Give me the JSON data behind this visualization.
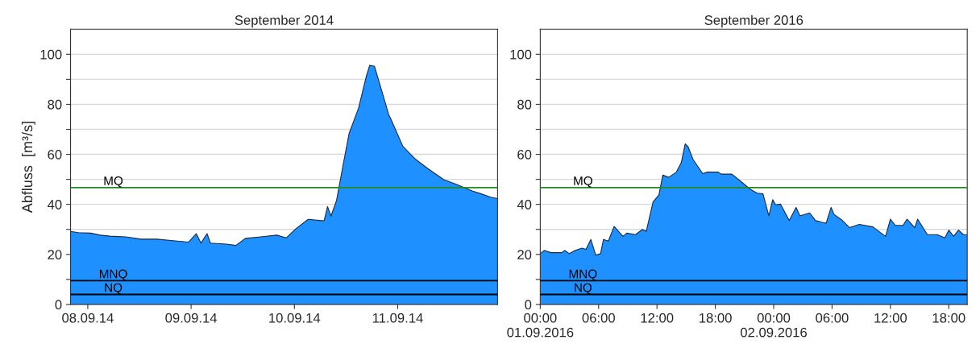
{
  "chart_data": [
    {
      "type": "area",
      "title": "September 2014",
      "ylabel": "Abfluss  [m³/s]",
      "xlim": [
        "2014-09-07T20:00",
        "2014-09-11T23:12"
      ],
      "xticks": [
        {
          "value": "2014-09-08",
          "label": "08.09.14"
        },
        {
          "value": "2014-09-09",
          "label": "09.09.14"
        },
        {
          "value": "2014-09-10",
          "label": "10.09.14"
        },
        {
          "value": "2014-09-11",
          "label": "11.09.14"
        }
      ],
      "ylim": [
        0,
        110
      ],
      "yticks": [
        0,
        {
          "value": 10,
          "label": null
        },
        20,
        {
          "value": 30,
          "label": null
        },
        40,
        {
          "value": 50,
          "label": null
        },
        60,
        {
          "value": 70,
          "label": null
        },
        80,
        {
          "value": 90,
          "label": null
        },
        100
      ],
      "grid": "y",
      "x": [
        "2014-09-07T20:00",
        "2014-09-07T21:48",
        "2014-09-08T00:42",
        "2014-09-08T02:54",
        "2014-09-08T05:06",
        "2014-09-08T08:48",
        "2014-09-08T12:24",
        "2014-09-08T16:06",
        "2014-09-08T19:48",
        "2014-09-08T23:24",
        "2014-09-09T01:12",
        "2014-09-09T02:18",
        "2014-09-09T03:42",
        "2014-09-09T04:30",
        "2014-09-09T08:12",
        "2014-09-09T10:24",
        "2014-09-09T12:36",
        "2014-09-09T16:12",
        "2014-09-09T19:54",
        "2014-09-09T22:06",
        "2014-09-10T00:18",
        "2014-09-10T03:12",
        "2014-09-10T06:54",
        "2014-09-10T07:42",
        "2014-09-10T08:30",
        "2014-09-10T09:48",
        "2014-09-10T11:18",
        "2014-09-10T12:42",
        "2014-09-10T14:54",
        "2014-09-10T16:42",
        "2014-09-10T17:30",
        "2014-09-10T18:36",
        "2014-09-10T20:24",
        "2014-09-10T21:54",
        "2014-09-10T22:36",
        "2014-09-11T01:12",
        "2014-09-11T04:06",
        "2014-09-11T07:00",
        "2014-09-11T10:42",
        "2014-09-11T13:36",
        "2014-09-11T17:18",
        "2014-09-11T19:24",
        "2014-09-11T21:36",
        "2014-09-11T23:12"
      ],
      "series": [
        {
          "color": "#1e90ff",
          "values": [
            29.2,
            28.7,
            28.5,
            27.7,
            27.3,
            27,
            26.1,
            26.1,
            25.5,
            24.9,
            28.3,
            24.5,
            28.3,
            24.5,
            24.1,
            23.6,
            26.4,
            27,
            27.7,
            26.6,
            30.2,
            34,
            33.4,
            39.1,
            35.3,
            41.6,
            55.6,
            68.3,
            78.4,
            91.1,
            95.6,
            95.2,
            84.8,
            75.9,
            73.4,
            63.2,
            58.1,
            54.3,
            49.9,
            48,
            45.4,
            44.2,
            42.9,
            42.3
          ]
        }
      ],
      "ref_lines": [
        {
          "axis": "y",
          "value": 46.7,
          "label": "MQ",
          "color": "#228b22"
        },
        {
          "axis": "y",
          "value": 9.5,
          "label": "MNQ",
          "color": "#000000"
        },
        {
          "axis": "y",
          "value": 4,
          "label": "NQ",
          "color": "#000000"
        }
      ]
    },
    {
      "type": "area",
      "title": "September 2016",
      "xlim": [
        "2016-09-01T00:00",
        "2016-09-02T19:54"
      ],
      "xticks": [
        {
          "value": "2016-09-01T00:00",
          "label": "00:00\n01.09.2016"
        },
        {
          "value": "2016-09-01T06:00",
          "label": "06:00"
        },
        {
          "value": "2016-09-01T12:00",
          "label": "12:00"
        },
        {
          "value": "2016-09-01T18:00",
          "label": "18:00"
        },
        {
          "value": "2016-09-02T00:00",
          "label": "00:00\n02.09.2016"
        },
        {
          "value": "2016-09-02T06:00",
          "label": "06:00"
        },
        {
          "value": "2016-09-02T12:00",
          "label": "12:00"
        },
        {
          "value": "2016-09-02T18:00",
          "label": "18:00"
        }
      ],
      "ylim": [
        0,
        110
      ],
      "yticks": [
        0,
        {
          "value": 10,
          "label": null
        },
        20,
        {
          "value": 30,
          "label": null
        },
        40,
        {
          "value": 50,
          "label": null
        },
        60,
        {
          "value": 70,
          "label": null
        },
        80,
        {
          "value": 90,
          "label": null
        },
        100
      ],
      "grid": "y",
      "x": [
        "2016-09-01T00:00",
        "2016-09-01T00:24",
        "2016-09-01T01:06",
        "2016-09-01T02:12",
        "2016-09-01T02:30",
        "2016-09-01T03:00",
        "2016-09-01T03:36",
        "2016-09-01T04:18",
        "2016-09-01T04:42",
        "2016-09-01T05:12",
        "2016-09-01T05:42",
        "2016-09-01T06:12",
        "2016-09-01T06:30",
        "2016-09-01T07:00",
        "2016-09-01T07:36",
        "2016-09-01T08:30",
        "2016-09-01T08:54",
        "2016-09-01T09:48",
        "2016-09-01T10:30",
        "2016-09-01T10:54",
        "2016-09-01T11:36",
        "2016-09-01T12:12",
        "2016-09-01T12:36",
        "2016-09-01T13:12",
        "2016-09-01T14:00",
        "2016-09-01T14:30",
        "2016-09-01T14:54",
        "2016-09-01T15:12",
        "2016-09-01T15:42",
        "2016-09-01T16:42",
        "2016-09-01T17:12",
        "2016-09-01T18:18",
        "2016-09-01T18:36",
        "2016-09-01T19:42",
        "2016-09-01T20:42",
        "2016-09-01T21:36",
        "2016-09-01T22:18",
        "2016-09-01T22:54",
        "2016-09-01T23:30",
        "2016-09-01T23:54",
        "2016-09-02T00:12",
        "2016-09-02T00:42",
        "2016-09-02T01:36",
        "2016-09-02T02:18",
        "2016-09-02T02:42",
        "2016-09-02T03:42",
        "2016-09-02T04:18",
        "2016-09-02T04:54",
        "2016-09-02T05:24",
        "2016-09-02T05:54",
        "2016-09-02T06:12",
        "2016-09-02T07:00",
        "2016-09-02T07:48",
        "2016-09-02T08:48",
        "2016-09-02T10:12",
        "2016-09-02T11:30",
        "2016-09-02T12:00",
        "2016-09-02T12:30",
        "2016-09-02T13:18",
        "2016-09-02T13:42",
        "2016-09-02T14:30",
        "2016-09-02T14:48",
        "2016-09-02T15:48",
        "2016-09-02T16:48",
        "2016-09-02T17:36",
        "2016-09-02T18:00",
        "2016-09-02T18:30",
        "2016-09-02T19:00",
        "2016-09-02T19:30",
        "2016-09-02T19:54"
      ],
      "series": [
        {
          "color": "#1e90ff",
          "values": [
            20.3,
            21.6,
            20.7,
            20.7,
            21.6,
            20.3,
            21.6,
            22.5,
            22,
            26,
            19.7,
            20.3,
            26,
            25.3,
            31.2,
            27.2,
            28.5,
            27.9,
            30,
            29.2,
            41,
            43.8,
            51.7,
            50.8,
            52.9,
            56.7,
            64.2,
            63,
            58,
            52.3,
            52.9,
            52.9,
            52.1,
            52.1,
            48.9,
            46,
            44.5,
            44.2,
            35.4,
            41.9,
            39.8,
            40.1,
            33.5,
            38.8,
            35.4,
            36.6,
            33.5,
            32.9,
            32.5,
            38.8,
            36,
            33.8,
            30.7,
            32,
            31,
            27.2,
            34.1,
            31.6,
            31.6,
            34.1,
            30.7,
            34.1,
            27.9,
            27.9,
            26.6,
            29.7,
            27.2,
            29.7,
            27.9,
            27.9
          ]
        }
      ],
      "ref_lines": [
        {
          "axis": "y",
          "value": 46.7,
          "label": "MQ",
          "color": "#228b22"
        },
        {
          "axis": "y",
          "value": 9.5,
          "label": "MNQ",
          "color": "#000000"
        },
        {
          "axis": "y",
          "value": 4,
          "label": "NQ",
          "color": "#000000"
        }
      ]
    }
  ]
}
